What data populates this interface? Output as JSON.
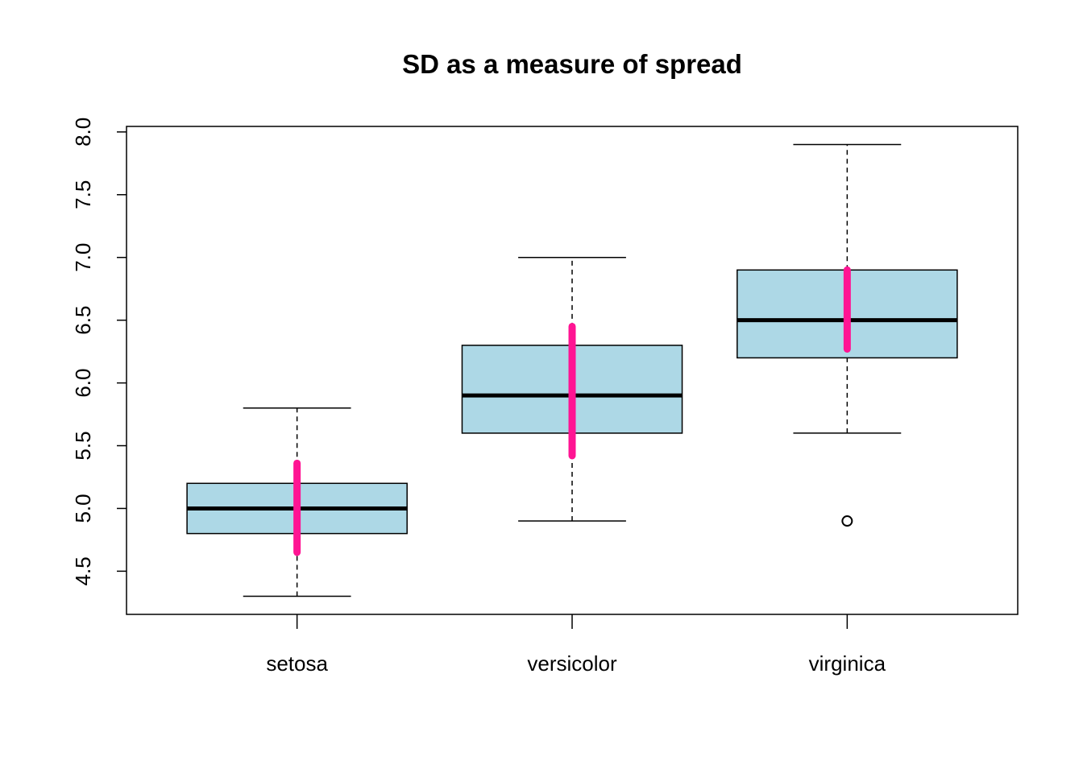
{
  "chart_data": {
    "type": "boxplot",
    "title": "SD as a measure of spread",
    "categories": [
      "setosa",
      "versicolor",
      "virginica"
    ],
    "boxes": [
      {
        "min": 4.3,
        "q1": 4.8,
        "median": 5.0,
        "q3": 5.2,
        "max": 5.8,
        "outliers": [],
        "spread_low": 4.65,
        "spread_high": 5.36
      },
      {
        "min": 4.9,
        "q1": 5.6,
        "median": 5.9,
        "q3": 6.3,
        "max": 7.0,
        "outliers": [],
        "spread_low": 5.42,
        "spread_high": 6.45
      },
      {
        "min": 5.6,
        "q1": 6.2,
        "median": 6.5,
        "q3": 6.9,
        "max": 7.9,
        "outliers": [
          4.9
        ],
        "spread_low": 6.27,
        "spread_high": 6.9
      }
    ],
    "box_color": "#add8e6",
    "spread_color": "#ff1493",
    "ylim": [
      4.156,
      8.044
    ],
    "yticks": [
      {
        "value": 4.5,
        "label": "4.5"
      },
      {
        "value": 5,
        "label": "5.0"
      },
      {
        "value": 5.5,
        "label": "5.5"
      },
      {
        "value": 6,
        "label": "6.0"
      },
      {
        "value": 6.5,
        "label": "6.5"
      },
      {
        "value": 7,
        "label": "7.0"
      },
      {
        "value": 7.5,
        "label": "7.5"
      },
      {
        "value": 8,
        "label": "8.0"
      }
    ]
  }
}
